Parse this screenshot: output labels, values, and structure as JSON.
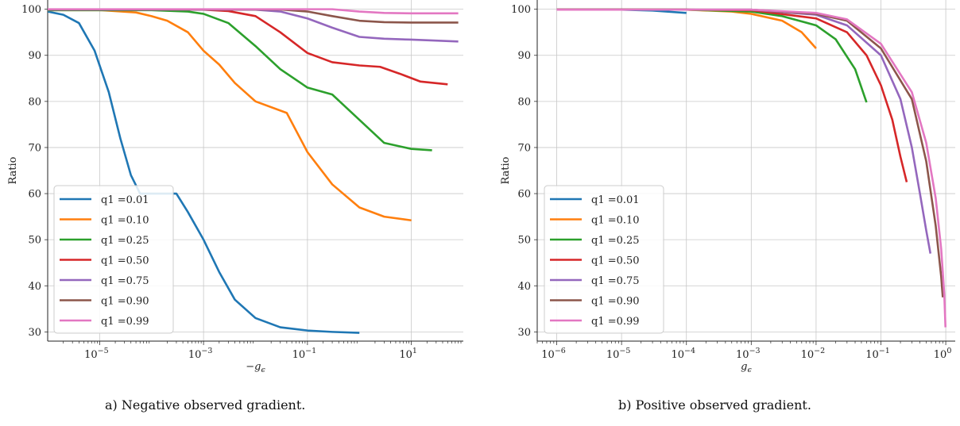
{
  "chart_data": [
    {
      "type": "line",
      "caption": "a) Negative observed gradient.",
      "xlabel": "−g",
      "xlabel_sub": "ϵ",
      "ylabel": "Ratio",
      "xscale": "log",
      "xlim": [
        1e-06,
        100
      ],
      "ylim": [
        28,
        102
      ],
      "yticks": [
        30,
        40,
        50,
        60,
        70,
        80,
        90,
        100
      ],
      "xticks": [
        {
          "value": 1e-05,
          "base": "10",
          "exp": "−5"
        },
        {
          "value": 0.001,
          "base": "10",
          "exp": "−3"
        },
        {
          "value": 0.1,
          "base": "10",
          "exp": "−1"
        },
        {
          "value": 10,
          "base": "10",
          "exp": "1"
        }
      ],
      "grid": true,
      "legend_position": "lower-left",
      "series": [
        {
          "name": "q1 =0.01",
          "color": "#1f77b4",
          "points": [
            [
              1e-06,
              99.5
            ],
            [
              2e-06,
              98.8
            ],
            [
              4e-06,
              97
            ],
            [
              8e-06,
              91
            ],
            [
              1.5e-05,
              82
            ],
            [
              2.5e-05,
              72
            ],
            [
              4e-05,
              64
            ],
            [
              6e-05,
              60
            ],
            [
              0.0003,
              60
            ],
            [
              0.0005,
              56
            ],
            [
              0.001,
              50
            ],
            [
              0.002,
              43
            ],
            [
              0.004,
              37
            ],
            [
              0.01,
              33
            ],
            [
              0.03,
              31
            ],
            [
              0.1,
              30.3
            ],
            [
              0.3,
              30
            ],
            [
              1,
              29.8
            ]
          ]
        },
        {
          "name": "q1 =0.10",
          "color": "#ff7f0e",
          "points": [
            [
              1e-06,
              99.8
            ],
            [
              1e-05,
              99.8
            ],
            [
              5e-05,
              99.3
            ],
            [
              0.0001,
              98.5
            ],
            [
              0.0002,
              97.5
            ],
            [
              0.0005,
              95
            ],
            [
              0.001,
              91
            ],
            [
              0.002,
              88
            ],
            [
              0.004,
              84
            ],
            [
              0.01,
              80
            ],
            [
              0.04,
              77.5
            ],
            [
              0.1,
              69
            ],
            [
              0.3,
              62
            ],
            [
              1,
              57
            ],
            [
              3,
              55
            ],
            [
              10,
              54.2
            ]
          ]
        },
        {
          "name": "q1 =0.25",
          "color": "#2ca02c",
          "points": [
            [
              1e-06,
              99.8
            ],
            [
              0.0001,
              99.8
            ],
            [
              0.0005,
              99.5
            ],
            [
              0.001,
              99
            ],
            [
              0.003,
              97
            ],
            [
              0.01,
              92
            ],
            [
              0.03,
              87
            ],
            [
              0.1,
              83
            ],
            [
              0.3,
              81.5
            ],
            [
              1,
              76
            ],
            [
              3,
              71
            ],
            [
              10,
              69.7
            ],
            [
              25,
              69.4
            ]
          ]
        },
        {
          "name": "q1 =0.50",
          "color": "#d62728",
          "points": [
            [
              1e-06,
              99.9
            ],
            [
              0.001,
              99.9
            ],
            [
              0.003,
              99.6
            ],
            [
              0.01,
              98.5
            ],
            [
              0.03,
              95
            ],
            [
              0.1,
              90.5
            ],
            [
              0.3,
              88.5
            ],
            [
              1,
              87.8
            ],
            [
              2.5,
              87.5
            ],
            [
              6,
              86
            ],
            [
              15,
              84.3
            ],
            [
              50,
              83.7
            ]
          ]
        },
        {
          "name": "q1 =0.75",
          "color": "#9467bd",
          "points": [
            [
              1e-06,
              99.9
            ],
            [
              0.01,
              99.9
            ],
            [
              0.03,
              99.5
            ],
            [
              0.1,
              98
            ],
            [
              0.3,
              96
            ],
            [
              1,
              94
            ],
            [
              3,
              93.6
            ],
            [
              10,
              93.4
            ],
            [
              30,
              93.2
            ],
            [
              80,
              93
            ]
          ]
        },
        {
          "name": "q1 =0.90",
          "color": "#8c564b",
          "points": [
            [
              1e-06,
              99.95
            ],
            [
              0.03,
              99.95
            ],
            [
              0.1,
              99.5
            ],
            [
              0.3,
              98.5
            ],
            [
              1,
              97.5
            ],
            [
              3,
              97.2
            ],
            [
              10,
              97.1
            ],
            [
              80,
              97.1
            ]
          ]
        },
        {
          "name": "q1 =0.99",
          "color": "#e377c2",
          "points": [
            [
              1e-06,
              100
            ],
            [
              0.3,
              100
            ],
            [
              1,
              99.5
            ],
            [
              3,
              99.2
            ],
            [
              10,
              99.1
            ],
            [
              80,
              99.1
            ]
          ]
        }
      ]
    },
    {
      "type": "line",
      "caption": "b) Positive observed gradient.",
      "xlabel": "g",
      "xlabel_sub": "ϵ",
      "ylabel": "Ratio",
      "xscale": "log",
      "xlim": [
        5e-07,
        1.4
      ],
      "ylim": [
        28,
        102
      ],
      "yticks": [
        30,
        40,
        50,
        60,
        70,
        80,
        90,
        100
      ],
      "xticks": [
        {
          "value": 1e-06,
          "base": "10",
          "exp": "−6"
        },
        {
          "value": 1e-05,
          "base": "10",
          "exp": "−5"
        },
        {
          "value": 0.0001,
          "base": "10",
          "exp": "−4"
        },
        {
          "value": 0.001,
          "base": "10",
          "exp": "−3"
        },
        {
          "value": 0.01,
          "base": "10",
          "exp": "−2"
        },
        {
          "value": 0.1,
          "base": "10",
          "exp": "−1"
        },
        {
          "value": 1,
          "base": "10",
          "exp": "0"
        }
      ],
      "grid": true,
      "legend_position": "lower-left",
      "series": [
        {
          "name": "q1 =0.01",
          "color": "#1f77b4",
          "points": [
            [
              1e-06,
              99.9
            ],
            [
              1e-05,
              99.9
            ],
            [
              3e-05,
              99.7
            ],
            [
              0.0001,
              99.2
            ]
          ]
        },
        {
          "name": "q1 =0.10",
          "color": "#ff7f0e",
          "points": [
            [
              1e-06,
              99.9
            ],
            [
              0.0001,
              99.9
            ],
            [
              0.0005,
              99.5
            ],
            [
              0.001,
              99
            ],
            [
              0.003,
              97.5
            ],
            [
              0.006,
              95
            ],
            [
              0.01,
              91.5
            ]
          ]
        },
        {
          "name": "q1 =0.25",
          "color": "#2ca02c",
          "points": [
            [
              1e-06,
              99.9
            ],
            [
              0.0001,
              99.9
            ],
            [
              0.001,
              99.5
            ],
            [
              0.003,
              98.5
            ],
            [
              0.01,
              96.5
            ],
            [
              0.02,
              93.5
            ],
            [
              0.04,
              87
            ],
            [
              0.06,
              79.8
            ]
          ]
        },
        {
          "name": "q1 =0.50",
          "color": "#d62728",
          "points": [
            [
              1e-06,
              99.9
            ],
            [
              0.0001,
              99.9
            ],
            [
              0.001,
              99.8
            ],
            [
              0.01,
              98
            ],
            [
              0.03,
              95
            ],
            [
              0.06,
              90
            ],
            [
              0.1,
              83.5
            ],
            [
              0.15,
              76
            ],
            [
              0.2,
              68
            ],
            [
              0.25,
              62.5
            ]
          ]
        },
        {
          "name": "q1 =0.75",
          "color": "#9467bd",
          "points": [
            [
              1e-06,
              99.9
            ],
            [
              0.001,
              99.9
            ],
            [
              0.01,
              98.8
            ],
            [
              0.03,
              96.5
            ],
            [
              0.1,
              90
            ],
            [
              0.2,
              80.5
            ],
            [
              0.3,
              70
            ],
            [
              0.4,
              60
            ],
            [
              0.5,
              52
            ],
            [
              0.58,
              47
            ]
          ]
        },
        {
          "name": "q1 =0.90",
          "color": "#8c564b",
          "points": [
            [
              1e-06,
              99.95
            ],
            [
              0.001,
              99.9
            ],
            [
              0.01,
              99
            ],
            [
              0.03,
              97.5
            ],
            [
              0.1,
              91.5
            ],
            [
              0.3,
              80.5
            ],
            [
              0.5,
              67
            ],
            [
              0.7,
              53
            ],
            [
              0.85,
              42
            ],
            [
              0.9,
              37.5
            ]
          ]
        },
        {
          "name": "q1 =0.99",
          "color": "#e377c2",
          "points": [
            [
              1e-06,
              99.9
            ],
            [
              0.001,
              99.9
            ],
            [
              0.01,
              99.2
            ],
            [
              0.03,
              97.8
            ],
            [
              0.1,
              92.5
            ],
            [
              0.3,
              82
            ],
            [
              0.5,
              71
            ],
            [
              0.7,
              59
            ],
            [
              0.85,
              48
            ],
            [
              0.95,
              38
            ],
            [
              0.99,
              31
            ]
          ]
        }
      ]
    }
  ]
}
